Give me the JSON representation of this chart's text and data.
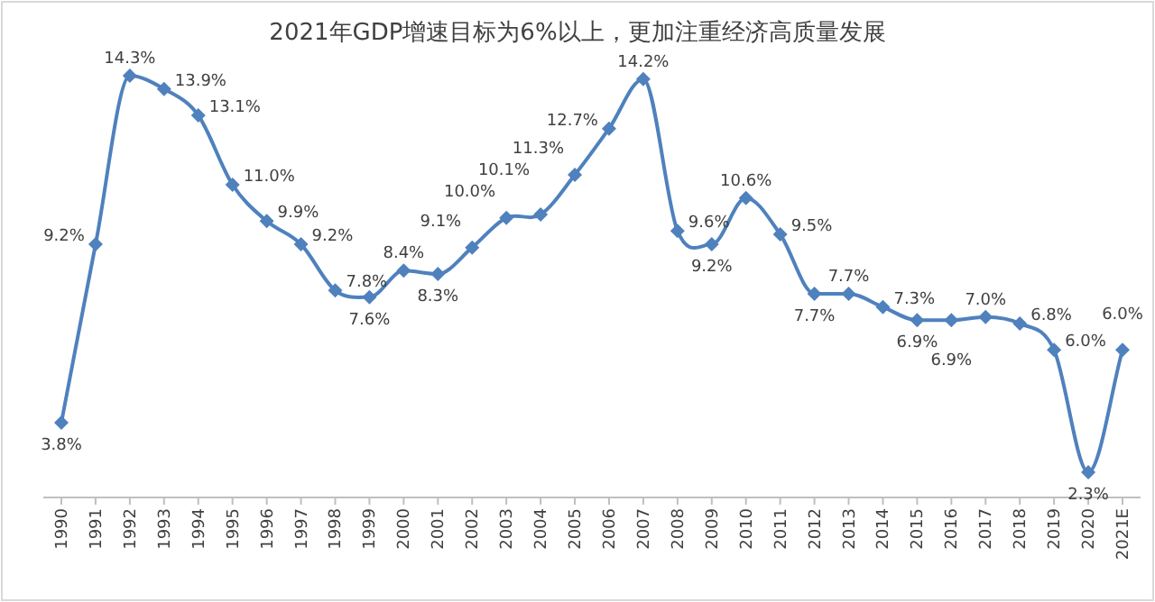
{
  "chart_data": {
    "type": "line",
    "title": "2021年GDP增速目标为6%以上，更加注重经济高质量发展",
    "categories": [
      "1990",
      "1991",
      "1992",
      "1993",
      "1994",
      "1995",
      "1996",
      "1997",
      "1998",
      "1999",
      "2000",
      "2001",
      "2002",
      "2003",
      "2004",
      "2005",
      "2006",
      "2007",
      "2008",
      "2009",
      "2010",
      "2011",
      "2012",
      "2013",
      "2014",
      "2015",
      "2016",
      "2017",
      "2018",
      "2019",
      "2020",
      "2021E"
    ],
    "series": [
      {
        "color": "#4f81bd",
        "values": [
          3.8,
          9.2,
          14.3,
          13.9,
          13.1,
          11.0,
          9.9,
          9.2,
          7.8,
          7.6,
          8.4,
          8.3,
          9.1,
          10.0,
          10.1,
          11.3,
          12.7,
          14.2,
          9.6,
          9.2,
          10.6,
          9.5,
          7.7,
          7.7,
          7.3,
          6.9,
          6.9,
          7.0,
          6.8,
          6.0,
          2.3,
          6.0
        ],
        "value_labels": [
          "3.8%",
          "9.2%",
          "14.3%",
          "13.9%",
          "13.1%",
          "11.0%",
          "9.9%",
          "9.2%",
          "7.8%",
          "7.6%",
          "8.4%",
          "8.3%",
          "9.1%",
          "10.0%",
          "10.1%",
          "11.3%",
          "12.7%",
          "14.2%",
          "9.6%",
          "9.2%",
          "10.6%",
          "9.5%",
          "7.7%",
          "7.7%",
          "7.3%",
          "6.9%",
          "6.9%",
          "7.0%",
          "6.8%",
          "6.0%",
          "2.3%",
          "6.0%"
        ]
      }
    ],
    "marker": "diamond",
    "line_style": "solid",
    "grid": false
  }
}
